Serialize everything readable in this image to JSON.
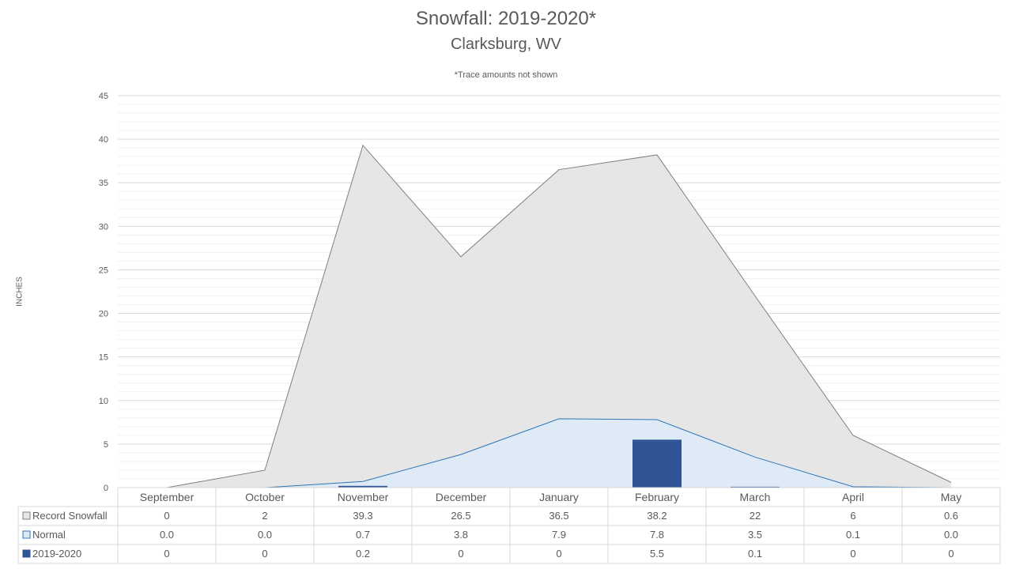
{
  "chart_data": {
    "type": "area",
    "title": "Snowfall: 2019-2020*",
    "subtitle": "Clarksburg, WV",
    "note": "*Trace amounts not shown",
    "ylabel": "INCHES",
    "ylim": [
      0,
      45
    ],
    "yticks": [
      "0",
      "5",
      "10",
      "15",
      "20",
      "25",
      "30",
      "35",
      "40",
      "45"
    ],
    "categories": [
      "September",
      "October",
      "November",
      "December",
      "January",
      "February",
      "March",
      "April",
      "May"
    ],
    "series": [
      {
        "name": "Record Snowfall",
        "kind": "area",
        "color": "#e6e6e6",
        "stroke": "#7f7f7f",
        "values": [
          0,
          2,
          39.3,
          26.5,
          36.5,
          38.2,
          22,
          6,
          0.6
        ],
        "labels": [
          "0",
          "2",
          "39.3",
          "26.5",
          "36.5",
          "38.2",
          "22",
          "6",
          "0.6"
        ]
      },
      {
        "name": "Normal",
        "kind": "area",
        "color": "#deebf7",
        "stroke": "#2e75b6",
        "values": [
          0.0,
          0.0,
          0.7,
          3.8,
          7.9,
          7.8,
          3.5,
          0.1,
          0.0
        ],
        "labels": [
          "0.0",
          "0.0",
          "0.7",
          "3.8",
          "7.9",
          "7.8",
          "3.5",
          "0.1",
          "0.0"
        ]
      },
      {
        "name": "2019-2020",
        "kind": "bar",
        "color": "#2f5597",
        "values": [
          0,
          0,
          0.2,
          0,
          0,
          5.5,
          0.1,
          0,
          0
        ],
        "labels": [
          "0",
          "0",
          "0.2",
          "0",
          "0",
          "5.5",
          "0.1",
          "0",
          "0"
        ]
      }
    ],
    "grid": true,
    "legend": "data-table"
  }
}
